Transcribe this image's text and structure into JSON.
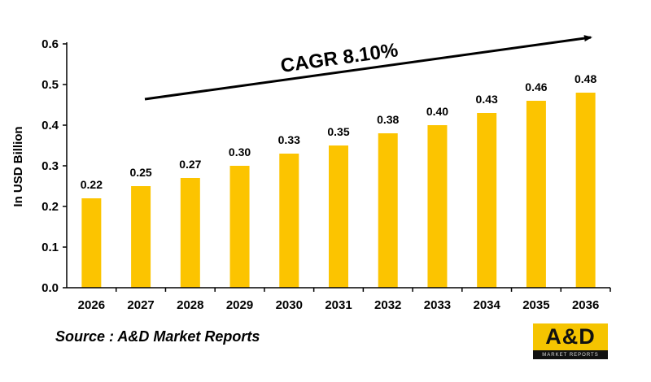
{
  "chart_data": {
    "type": "bar",
    "categories": [
      "2026",
      "2027",
      "2028",
      "2029",
      "2030",
      "2031",
      "2032",
      "2033",
      "2034",
      "2035",
      "2036"
    ],
    "values": [
      0.22,
      0.25,
      0.27,
      0.3,
      0.33,
      0.35,
      0.38,
      0.4,
      0.43,
      0.46,
      0.48
    ],
    "value_labels": [
      "0.22",
      "0.25",
      "0.27",
      "0.30",
      "0.33",
      "0.35",
      "0.38",
      "0.40",
      "0.43",
      "0.46",
      "0.48"
    ],
    "ylabel": "In USD Billion",
    "ylim": [
      0,
      0.6
    ],
    "yticks": [
      "0.0",
      "0.1",
      "0.2",
      "0.3",
      "0.4",
      "0.5",
      "0.6"
    ],
    "grid": false,
    "bar_color": "#fcc400",
    "annotation": "CAGR 8.10%"
  },
  "source_text": "Source : A&D Market Reports",
  "logo": {
    "main": "A&D",
    "sub": "MARKET REPORTS"
  }
}
